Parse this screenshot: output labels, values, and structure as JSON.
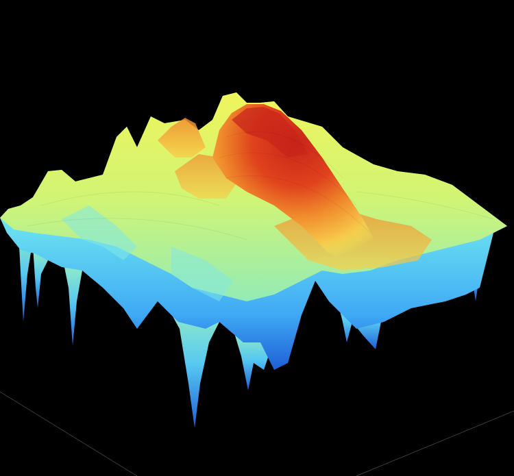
{
  "scene": {
    "background": "#000000",
    "subject": "3d-surface-plot",
    "colormap": [
      "#1f5fd6",
      "#3fa9f5",
      "#6fe6f0",
      "#c8f57a",
      "#f2f55a",
      "#f7c84a",
      "#f08a2c",
      "#d8341a"
    ],
    "peak_color": "#d8341a",
    "trough_color": "#1f5fd6",
    "grid_line_color": "#3a3a3a",
    "shading": "faceted",
    "axes_labels_visible": false,
    "tick_labels_visible": false
  }
}
